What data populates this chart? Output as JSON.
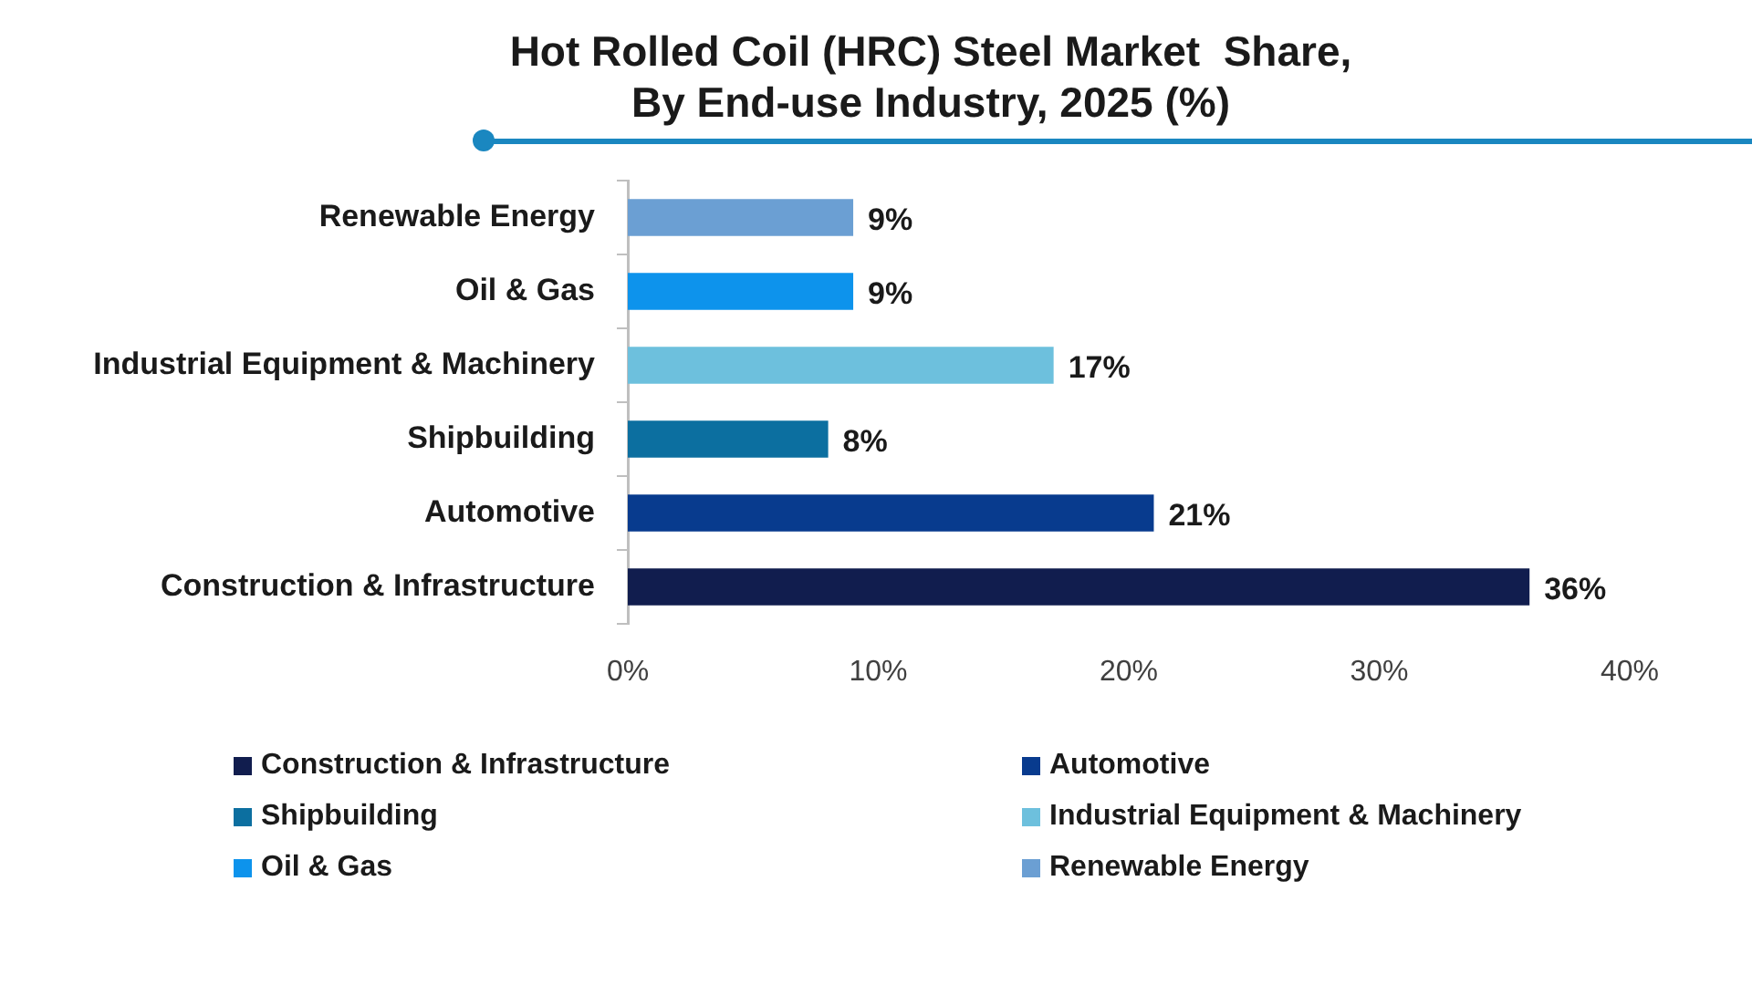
{
  "chart_data": {
    "type": "bar",
    "orientation": "horizontal",
    "title": "Hot Rolled Coil (HRC) Steel Market  Share, By End-use Industry, 2025 (%)",
    "categories": [
      "Renewable Energy",
      "Oil & Gas",
      "Industrial Equipment & Machinery",
      "Shipbuilding",
      "Automotive",
      "Construction & Infrastructure"
    ],
    "series": [
      {
        "name": "Construction & Infrastructure",
        "color": "#111d4e",
        "values": [
          null,
          null,
          null,
          null,
          null,
          36
        ],
        "value_labels": [
          null,
          null,
          null,
          null,
          null,
          "36%"
        ]
      },
      {
        "name": "Automotive",
        "color": "#083b8e",
        "values": [
          null,
          null,
          null,
          null,
          21,
          null
        ],
        "value_labels": [
          null,
          null,
          null,
          null,
          "21%",
          null
        ]
      },
      {
        "name": "Shipbuilding",
        "color": "#0c6fa0",
        "values": [
          null,
          null,
          null,
          8,
          null,
          null
        ],
        "value_labels": [
          null,
          null,
          null,
          "8%",
          null,
          null
        ]
      },
      {
        "name": "Industrial Equipment & Machinery",
        "color": "#6dc0dd",
        "values": [
          null,
          null,
          17,
          null,
          null,
          null
        ],
        "value_labels": [
          null,
          null,
          "17%",
          null,
          null,
          null
        ]
      },
      {
        "name": "Oil & Gas",
        "color": "#0d93ec",
        "values": [
          null,
          9,
          null,
          null,
          null,
          null
        ],
        "value_labels": [
          null,
          "9%",
          null,
          null,
          null,
          null
        ]
      },
      {
        "name": "Renewable Energy",
        "color": "#6b9fd3",
        "values": [
          9,
          null,
          null,
          null,
          null,
          null
        ],
        "value_labels": [
          "9%",
          null,
          null,
          null,
          null,
          null
        ]
      }
    ],
    "xlim": [
      0,
      40
    ],
    "xticks": [
      {
        "value": 0,
        "label": "0%"
      },
      {
        "value": 10,
        "label": "10%"
      },
      {
        "value": 20,
        "label": "20%"
      },
      {
        "value": 30,
        "label": "30%"
      },
      {
        "value": 40,
        "label": "40%"
      }
    ],
    "legend": "bottom"
  }
}
